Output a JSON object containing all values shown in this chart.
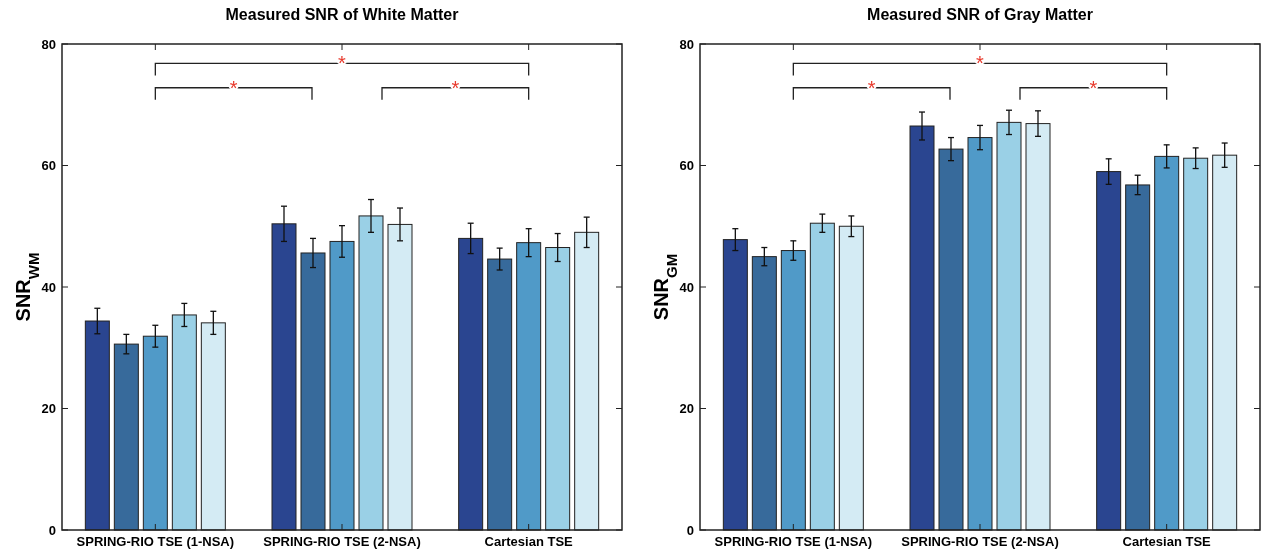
{
  "chart_data": [
    {
      "type": "bar",
      "title": "Measured SNR of White Matter",
      "ylabel": "SNR$_{WM}$",
      "categories": [
        "SPRING-RIO TSE (1-NSA)",
        "SPRING-RIO TSE (2-NSA)",
        "Cartesian TSE"
      ],
      "series": [
        {
          "color": "#2a4590",
          "values": [
            34.4,
            50.4,
            48.0
          ],
          "errors": [
            2.1,
            2.9,
            2.5
          ]
        },
        {
          "color": "#376a9b",
          "values": [
            30.6,
            45.6,
            44.6
          ],
          "errors": [
            1.6,
            2.4,
            1.8
          ]
        },
        {
          "color": "#509ac8",
          "values": [
            31.9,
            47.5,
            47.3
          ],
          "errors": [
            1.8,
            2.6,
            2.3
          ]
        },
        {
          "color": "#9ad0e6",
          "values": [
            35.4,
            51.7,
            46.5
          ],
          "errors": [
            1.9,
            2.7,
            2.3
          ]
        },
        {
          "color": "#d4ebf4",
          "values": [
            34.1,
            50.3,
            49.0
          ],
          "errors": [
            1.9,
            2.7,
            2.5
          ]
        }
      ],
      "ylim": [
        0,
        80
      ],
      "yticks": [
        0,
        20,
        40,
        60,
        80
      ],
      "grid": false,
      "annotations": [
        "*",
        "*",
        "*"
      ]
    },
    {
      "type": "bar",
      "title": "Measured SNR of Gray Matter",
      "ylabel": "SNR$_{GM}$",
      "categories": [
        "SPRING-RIO TSE (1-NSA)",
        "SPRING-RIO TSE (2-NSA)",
        "Cartesian TSE"
      ],
      "series": [
        {
          "color": "#2a4590",
          "values": [
            47.8,
            66.5,
            59.0
          ],
          "errors": [
            1.8,
            2.3,
            2.1
          ]
        },
        {
          "color": "#376a9b",
          "values": [
            45.0,
            62.7,
            56.8
          ],
          "errors": [
            1.5,
            1.9,
            1.6
          ]
        },
        {
          "color": "#509ac8",
          "values": [
            46.0,
            64.6,
            61.5
          ],
          "errors": [
            1.6,
            2.0,
            1.9
          ]
        },
        {
          "color": "#9ad0e6",
          "values": [
            50.5,
            67.1,
            61.2
          ],
          "errors": [
            1.5,
            2.0,
            1.7
          ]
        },
        {
          "color": "#d4ebf4",
          "values": [
            50.0,
            66.9,
            61.7
          ],
          "errors": [
            1.7,
            2.1,
            2.0
          ]
        }
      ],
      "ylim": [
        0,
        80
      ],
      "yticks": [
        0,
        20,
        40,
        60,
        80
      ],
      "grid": false,
      "annotations": [
        "*",
        "*",
        "*"
      ]
    }
  ]
}
